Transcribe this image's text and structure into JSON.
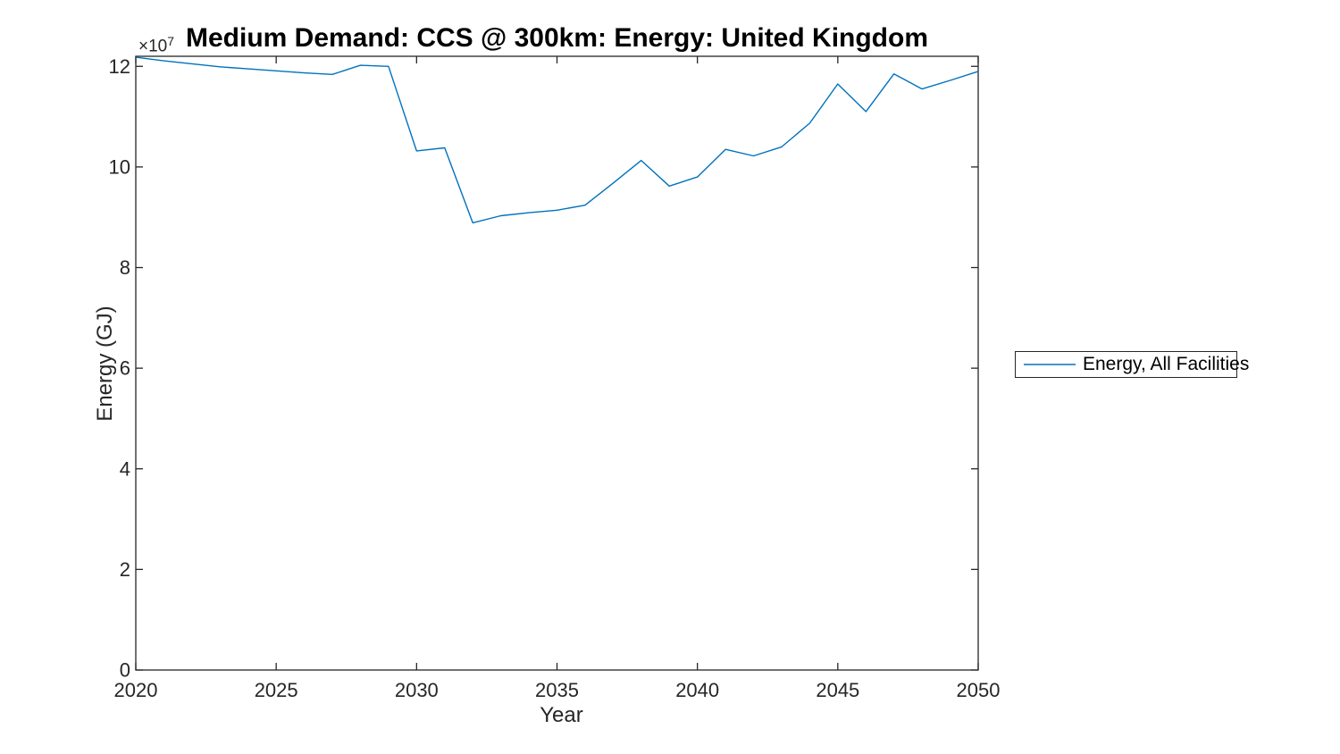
{
  "chart_data": {
    "type": "line",
    "title": "Medium Demand: CCS @ 300km: Energy: United Kingdom",
    "xlabel": "Year",
    "ylabel": "Energy (GJ)",
    "y_axis_multiplier": {
      "base": "×10",
      "exponent": "7"
    },
    "grid": false,
    "background": "#ffffff",
    "axis_color": "#262626",
    "xlim": [
      2020,
      2050
    ],
    "ylim": [
      0,
      122000000
    ],
    "xticks": {
      "values": [
        2020,
        2025,
        2030,
        2035,
        2040,
        2045,
        2050
      ],
      "labels": [
        "2020",
        "2025",
        "2030",
        "2035",
        "2040",
        "2045",
        "2050"
      ]
    },
    "yticks": {
      "values": [
        0,
        20000000,
        40000000,
        60000000,
        80000000,
        100000000,
        120000000
      ],
      "labels": [
        "0",
        "2",
        "4",
        "6",
        "8",
        "10",
        "12"
      ]
    },
    "legend_position": "right-outside",
    "x": [
      2020,
      2021,
      2022,
      2023,
      2024,
      2025,
      2026,
      2027,
      2028,
      2029,
      2030,
      2031,
      2032,
      2033,
      2034,
      2035,
      2036,
      2037,
      2038,
      2039,
      2040,
      2041,
      2042,
      2043,
      2044,
      2045,
      2046,
      2047,
      2048,
      2049,
      2050
    ],
    "series": [
      {
        "name": "Energy, All Facilities",
        "color": "#0072BD",
        "values": [
          121800000,
          121100000,
          120500000,
          119900000,
          119500000,
          119100000,
          118700000,
          118400000,
          120200000,
          120000000,
          103200000,
          103800000,
          88900000,
          90300000,
          90900000,
          91400000,
          92400000,
          96800000,
          101300000,
          96200000,
          98000000,
          103500000,
          102200000,
          104000000,
          108700000,
          116500000,
          111000000,
          118500000,
          115500000,
          117200000,
          119000000
        ]
      }
    ]
  }
}
